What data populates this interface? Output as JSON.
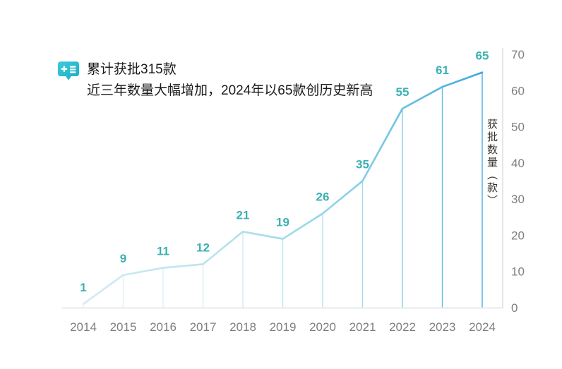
{
  "annotation": {
    "icon": "book-plus-list-icon",
    "line1": "累计获批315款",
    "line2": "近三年数量大幅增加，2024年以65款创历史新高"
  },
  "chart_data": {
    "type": "line",
    "categories": [
      "2014",
      "2015",
      "2016",
      "2017",
      "2018",
      "2019",
      "2020",
      "2021",
      "2022",
      "2023",
      "2024"
    ],
    "values": [
      1,
      9,
      11,
      12,
      21,
      19,
      26,
      35,
      55,
      61,
      65
    ],
    "title": "",
    "xlabel": "",
    "ylabel": "获批数量（款）",
    "ylim": [
      0,
      70
    ],
    "yticks": [
      0,
      10,
      20,
      30,
      40,
      50,
      60,
      70
    ],
    "grid": false,
    "legend": "none",
    "y_axis_side": "right",
    "data_labels_shown": true,
    "drop_lines_shown": true,
    "line_gradient": [
      "#d3ecf2",
      "#b7e3ed",
      "#8bd2e5",
      "#3ea9dc"
    ],
    "drop_line_gradient": [
      "#e6f4f7",
      "#d5eef3",
      "#aadeeb",
      "#47aedf"
    ],
    "data_label_color": "#3bb1b2",
    "axis_color": "#d9d9d9",
    "tick_label_color": "#7f7f7f",
    "ylabel_color": "#333333"
  },
  "colors": {
    "background": "#ffffff",
    "icon_teal_start": "#3ecadb",
    "icon_teal_end": "#17adc5",
    "annotation_text": "#1a1a1a"
  }
}
